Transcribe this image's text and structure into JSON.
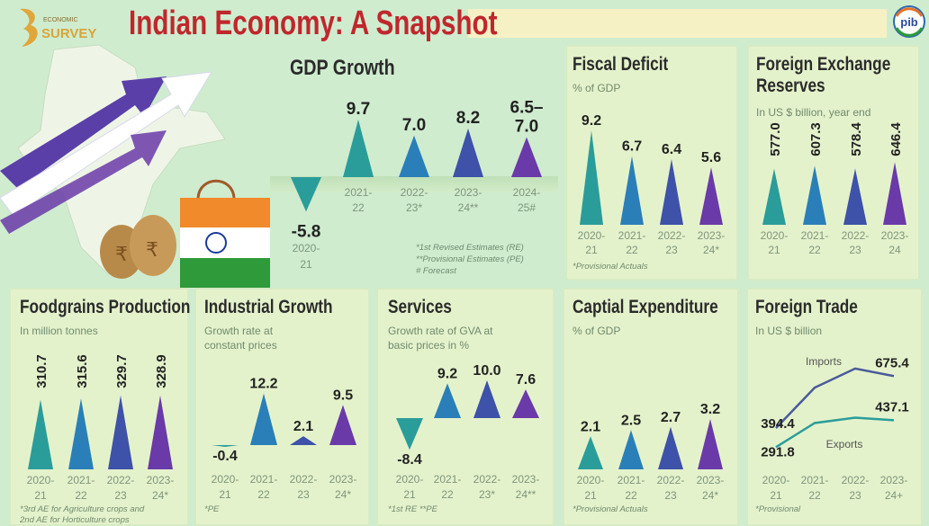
{
  "header": {
    "title": "Indian Economy: A Snapshot",
    "logo_left": "ECONOMIC SURVEY",
    "logo_right": "pib"
  },
  "colors": {
    "teal": "#2a9d9a",
    "blue": "#2a7fb8",
    "indigo": "#3d52a8",
    "purple": "#6a3aa8",
    "title_red": "#c0272d"
  },
  "chart_data": [
    {
      "id": "gdp",
      "type": "bar",
      "mark": "triangle",
      "title": "GDP Growth",
      "categories": [
        "2020-21",
        "2021-22",
        "2022-23*",
        "2023-24**",
        "2024-25#"
      ],
      "values": [
        -5.8,
        9.7,
        7.0,
        8.2,
        6.75
      ],
      "labels": [
        "-5.8",
        "9.7",
        "7.0",
        "8.2",
        "6.5–\n7.0"
      ],
      "notes": [
        "*1st Revised Estimates (RE)",
        "**Provisional Estimates (PE)",
        "# Forecast"
      ]
    },
    {
      "id": "fiscal",
      "type": "bar",
      "mark": "triangle",
      "title": "Fiscal Deficit",
      "subtitle": "% of GDP",
      "categories": [
        "2020-21",
        "2021-22",
        "2022-23",
        "2023-24*"
      ],
      "values": [
        9.2,
        6.7,
        6.4,
        5.6
      ],
      "labels": [
        "9.2",
        "6.7",
        "6.4",
        "5.6"
      ],
      "notes": [
        "*Provisional Actuals"
      ]
    },
    {
      "id": "forex",
      "type": "bar",
      "mark": "triangle",
      "title": "Foreign Exchange\nReserves",
      "subtitle": "In US $ billion, year end",
      "categories": [
        "2020-21",
        "2021-22",
        "2022-23",
        "2023-24"
      ],
      "values": [
        577.0,
        607.3,
        578.4,
        646.4
      ],
      "labels": [
        "577.0",
        "607.3",
        "578.4",
        "646.4"
      ],
      "notes": []
    },
    {
      "id": "food",
      "type": "bar",
      "mark": "triangle",
      "title": "Foodgrains Production",
      "subtitle": "In million tonnes",
      "categories": [
        "2020-21",
        "2021-22",
        "2022-23",
        "2023-24*"
      ],
      "values": [
        310.7,
        315.6,
        329.7,
        328.9
      ],
      "labels": [
        "310.7",
        "315.6",
        "329.7",
        "328.9"
      ],
      "notes": [
        "*3rd AE for Agriculture crops and",
        "2nd AE for Horticulture crops"
      ]
    },
    {
      "id": "industry",
      "type": "bar",
      "mark": "triangle",
      "title": "Industrial Growth",
      "subtitle": "Growth rate at\nconstant prices",
      "categories": [
        "2020-21",
        "2021-22",
        "2022-23",
        "2023-24*"
      ],
      "values": [
        -0.4,
        12.2,
        2.1,
        9.5
      ],
      "labels": [
        "-0.4",
        "12.2",
        "2.1",
        "9.5"
      ],
      "notes": [
        "*PE"
      ]
    },
    {
      "id": "services",
      "type": "bar",
      "mark": "triangle",
      "title": "Services",
      "subtitle": "Growth rate of GVA at\nbasic prices in %",
      "categories": [
        "2020-21",
        "2021-22",
        "2022-23*",
        "2023-24**"
      ],
      "values": [
        -8.4,
        9.2,
        10.0,
        7.6
      ],
      "labels": [
        "-8.4",
        "9.2",
        "10.0",
        "7.6"
      ],
      "notes": [
        "*1st RE  **PE"
      ]
    },
    {
      "id": "capex",
      "type": "bar",
      "mark": "triangle",
      "title": "Captial Expenditure",
      "subtitle": "% of GDP",
      "categories": [
        "2020-21",
        "2021-22",
        "2022-23",
        "2023-24*"
      ],
      "values": [
        2.1,
        2.5,
        2.7,
        3.2
      ],
      "labels": [
        "2.1",
        "2.5",
        "2.7",
        "3.2"
      ],
      "notes": [
        "*Provisional Actuals"
      ]
    },
    {
      "id": "trade",
      "type": "line",
      "title": "Foreign Trade",
      "subtitle": "In US $ billion",
      "categories": [
        "2020-21",
        "2021-22",
        "2022-23",
        "2023-24+"
      ],
      "series": [
        {
          "name": "Imports",
          "values": [
            394.4,
            613,
            716,
            675.4
          ],
          "labels": [
            "394.4",
            "",
            "",
            "675.4"
          ],
          "color": "#4a5a9a"
        },
        {
          "name": "Exports",
          "values": [
            291.8,
            422,
            451,
            437.1
          ],
          "labels": [
            "291.8",
            "",
            "",
            "437.1"
          ],
          "color": "#2a9d9a"
        }
      ],
      "notes": [
        "*Provisional"
      ]
    }
  ]
}
